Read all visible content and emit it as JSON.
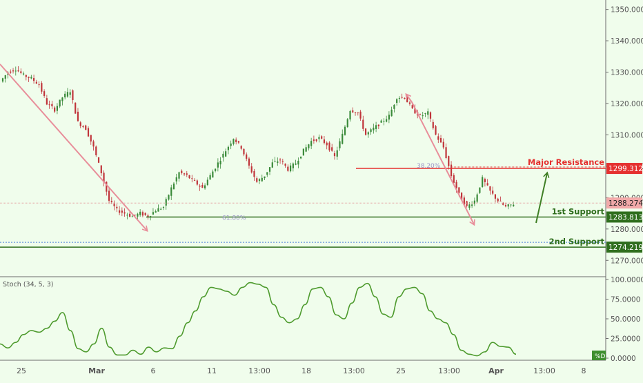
{
  "colors": {
    "background": "#f0fdec",
    "candle_up": "#3a8a3a",
    "candle_down": "#c0343a",
    "resistance": "#e5312f",
    "support": "#2f6e1d",
    "arrow_pink": "#e88e9a",
    "arrow_green": "#3f7f25",
    "stoch_line": "#4e9b2e",
    "axis_text": "#555555",
    "fib_text": "#9b96c8",
    "current_price_bg": "#f2a9a9"
  },
  "price_panel": {
    "y_ticks": [
      "1350.000",
      "1340.000",
      "1330.000",
      "1320.000",
      "1310.000",
      "1300.000",
      "1290.000",
      "1280.000",
      "1270.000"
    ],
    "tick_values": [
      1350,
      1340,
      1330,
      1320,
      1310,
      1300,
      1290,
      1280,
      1270
    ],
    "y_min": 1265,
    "y_max": 1353,
    "major_resistance": {
      "label": "Major Resistance",
      "value": "1299.312",
      "level": 1299.312
    },
    "first_support": {
      "label": "1st Support",
      "value": "1283.813",
      "level": 1283.813
    },
    "second_support": {
      "label": "2nd Support",
      "value": "1274.219",
      "level": 1274.219
    },
    "current_price": {
      "value": "1288.274",
      "level": 1288.274
    },
    "fib_labels": [
      "38.20%",
      "61.80%"
    ]
  },
  "stoch_panel": {
    "title": "Stoch (34, 5, 3)",
    "y_ticks": [
      "100.0000",
      "75.0000",
      "50.0000",
      "25.0000",
      "0.0000"
    ],
    "tick_values": [
      100,
      75,
      50,
      25,
      0
    ],
    "legend_badge": "%D"
  },
  "x_axis": {
    "labels": [
      "25",
      "Mar",
      "6",
      "11",
      "13:00",
      "18",
      "13:00",
      "25",
      "13:00",
      "Apr",
      "13:00",
      "8"
    ]
  },
  "chart_data": {
    "type": "candlestick",
    "title": "",
    "ylabel": "",
    "ylim": [
      1265,
      1353
    ],
    "horizontal_levels": [
      {
        "name": "Major Resistance",
        "value": 1299.312
      },
      {
        "name": "1st Support",
        "value": 1283.813
      },
      {
        "name": "2nd Support",
        "value": 1274.219
      }
    ],
    "close_path": [
      1327,
      1330,
      1331,
      1329,
      1328,
      1326,
      1320,
      1318,
      1322,
      1324,
      1314,
      1312,
      1306,
      1298,
      1289,
      1286,
      1285,
      1284,
      1285,
      1284,
      1286,
      1287,
      1293,
      1298,
      1297,
      1295,
      1293,
      1297,
      1301,
      1305,
      1309,
      1306,
      1300,
      1295,
      1297,
      1301,
      1302,
      1299,
      1301,
      1305,
      1308,
      1309,
      1307,
      1303,
      1310,
      1318,
      1317,
      1310,
      1312,
      1314,
      1316,
      1322,
      1322,
      1318,
      1316,
      1317,
      1310,
      1306,
      1297,
      1291,
      1287,
      1289,
      1296,
      1292,
      1289,
      1287,
      1288
    ],
    "stoch_d": [
      18,
      13,
      20,
      30,
      35,
      33,
      38,
      47,
      58,
      35,
      12,
      8,
      18,
      38,
      14,
      4,
      4,
      10,
      5,
      14,
      8,
      13,
      12,
      28,
      45,
      60,
      78,
      90,
      88,
      85,
      80,
      90,
      96,
      94,
      90,
      68,
      52,
      45,
      50,
      68,
      88,
      90,
      78,
      55,
      50,
      70,
      90,
      95,
      78,
      56,
      52,
      78,
      88,
      90,
      82,
      60,
      50,
      45,
      30,
      10,
      5,
      3,
      8,
      20,
      15,
      14,
      5
    ]
  }
}
